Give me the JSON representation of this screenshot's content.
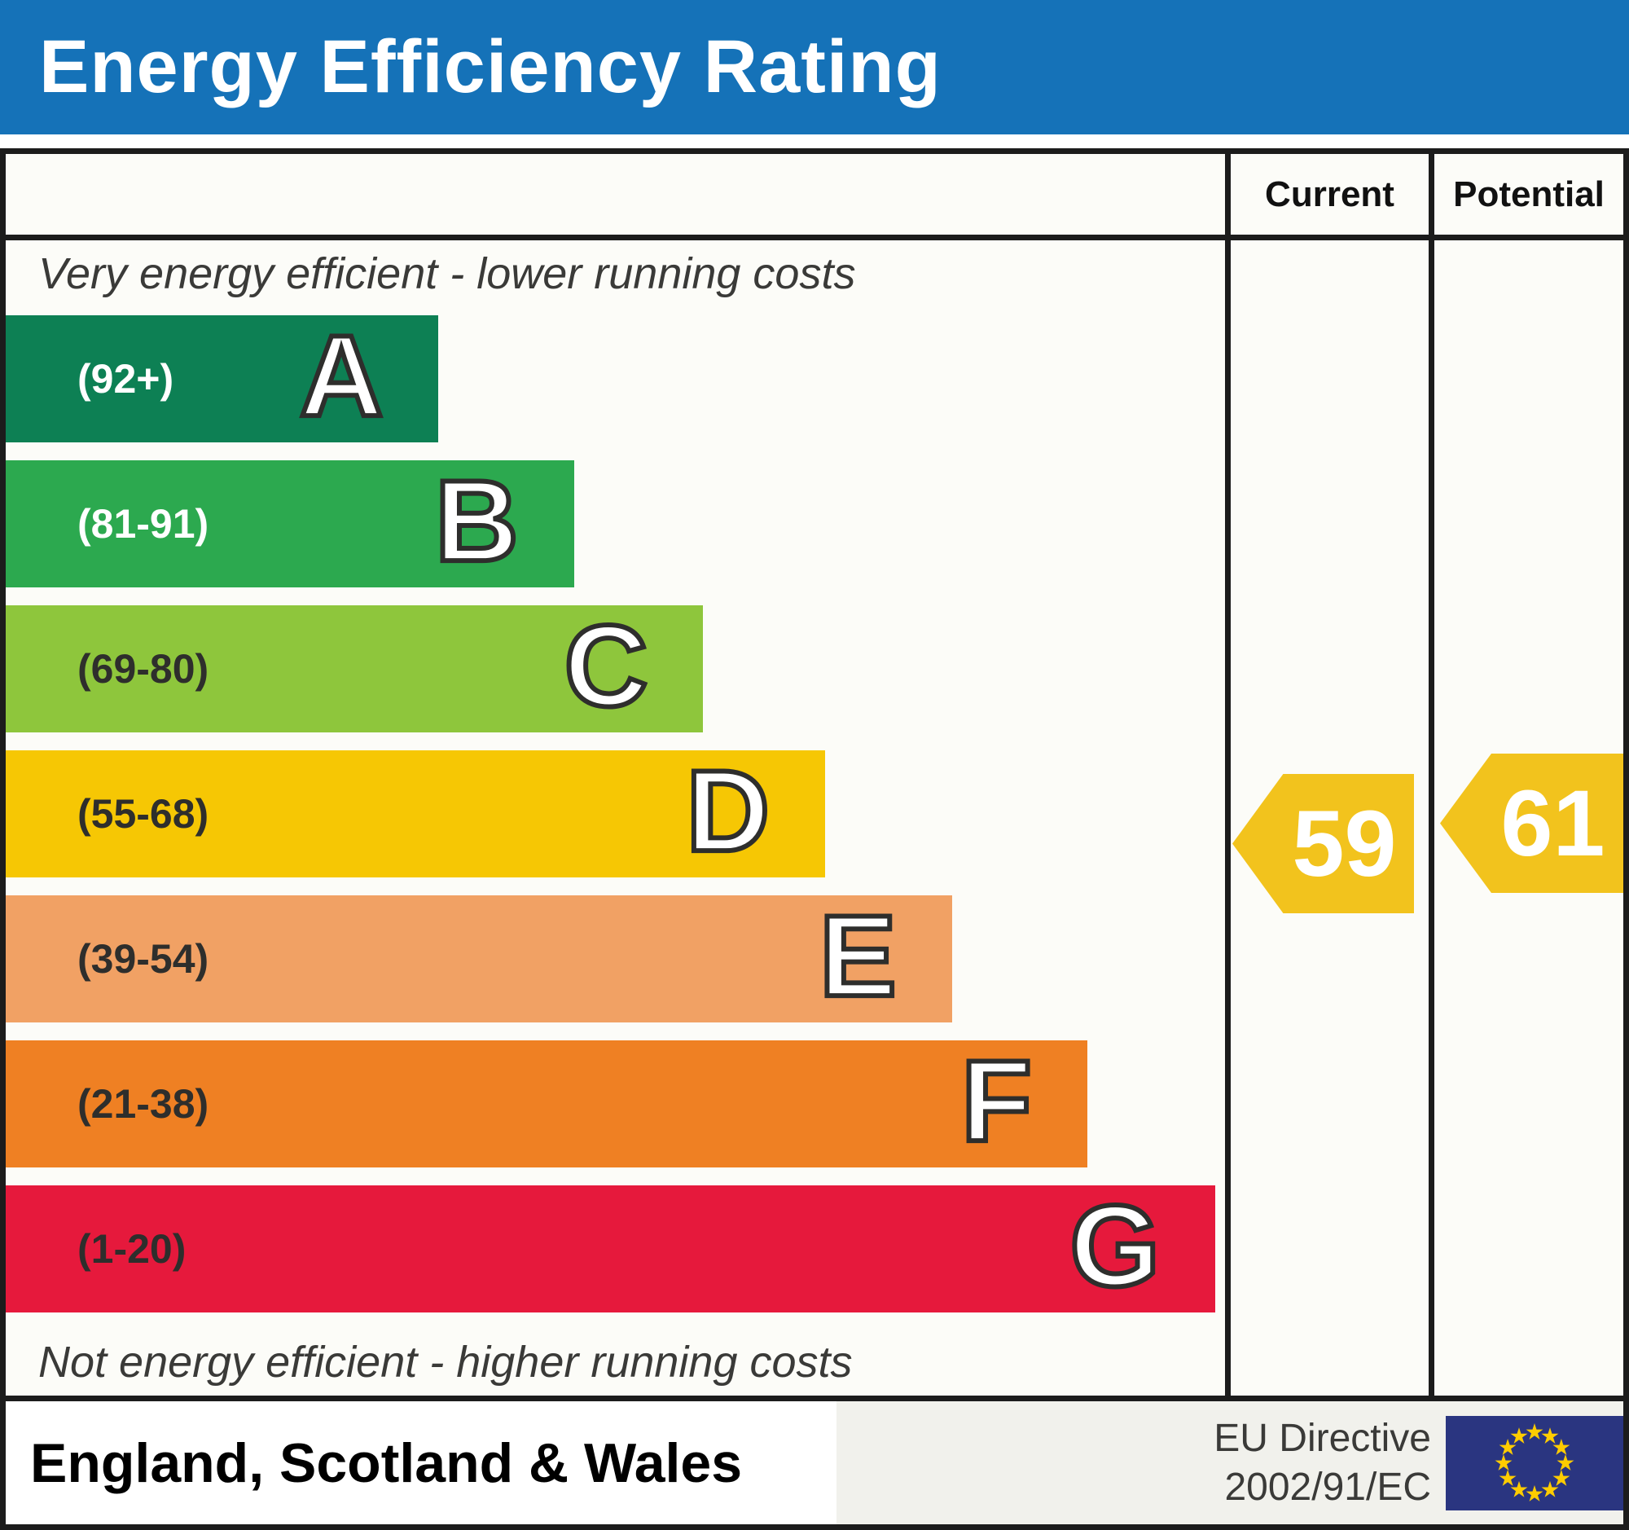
{
  "title": "Energy Efficiency Rating",
  "columns": {
    "current": "Current",
    "potential": "Potential"
  },
  "top_note": "Very energy efficient - lower running costs",
  "bottom_note": "Not energy efficient - higher running costs",
  "bands": [
    {
      "letter": "A",
      "range": "(92+)",
      "color": "#0d8054",
      "label_color": "#ffffff",
      "width_pct": 35.5
    },
    {
      "letter": "B",
      "range": "(81-91)",
      "color": "#2ca94f",
      "label_color": "#ffffff",
      "width_pct": 46.6
    },
    {
      "letter": "C",
      "range": "(69-80)",
      "color": "#8ec63c",
      "label_color": "#2e2e2c",
      "width_pct": 57.2
    },
    {
      "letter": "D",
      "range": "(55-68)",
      "color": "#f6c704",
      "label_color": "#2e2e2c",
      "width_pct": 67.2
    },
    {
      "letter": "E",
      "range": "(39-54)",
      "color": "#f1a164",
      "label_color": "#2e2e2c",
      "width_pct": 77.6
    },
    {
      "letter": "F",
      "range": "(21-38)",
      "color": "#ef8023",
      "label_color": "#2e2e2c",
      "width_pct": 88.7
    },
    {
      "letter": "G",
      "range": "(1-20)",
      "color": "#e6193c",
      "label_color": "#2e2e2c",
      "width_pct": 99.2
    }
  ],
  "current": {
    "value": "59",
    "band": "D"
  },
  "potential": {
    "value": "61",
    "band": "D"
  },
  "footer": {
    "region": "England, Scotland & Wales",
    "directive_line1": "EU Directive",
    "directive_line2": "2002/91/EC"
  },
  "icons": {
    "eu_flag": {
      "name": "eu-flag-icon",
      "blue": "#2a3580",
      "star_color": "#ffcc00",
      "stars": 12
    }
  },
  "colors": {
    "banner_blue": "#1572b8",
    "border_dark": "#1c1c1c",
    "panel_bg": "#fcfcf8",
    "footer_bg": "#f1f1ec",
    "arrow_yellow": "#f2c31d",
    "note_color": "#3a3a38",
    "letter_outline": "#2e2e2c"
  },
  "chart_data": {
    "type": "bar",
    "title": "Energy Efficiency Rating",
    "categories": [
      "A",
      "B",
      "C",
      "D",
      "E",
      "F",
      "G"
    ],
    "band_ranges": [
      "92+",
      "81-91",
      "69-80",
      "55-68",
      "39-54",
      "21-38",
      "1-20"
    ],
    "band_colors": [
      "#0d8054",
      "#2ca94f",
      "#8ec63c",
      "#f6c704",
      "#f1a164",
      "#ef8023",
      "#e6193c"
    ],
    "relative_bar_widths_pct": [
      35.5,
      46.6,
      57.2,
      67.2,
      77.6,
      88.7,
      99.2
    ],
    "current_rating": 59,
    "potential_rating": 61,
    "current_band": "D",
    "potential_band": "D",
    "top_annotation": "Very energy efficient - lower running costs",
    "bottom_annotation": "Not energy efficient - higher running costs",
    "region": "England, Scotland & Wales",
    "directive": "EU Directive 2002/91/EC",
    "legend_position": "none",
    "grid": false
  }
}
